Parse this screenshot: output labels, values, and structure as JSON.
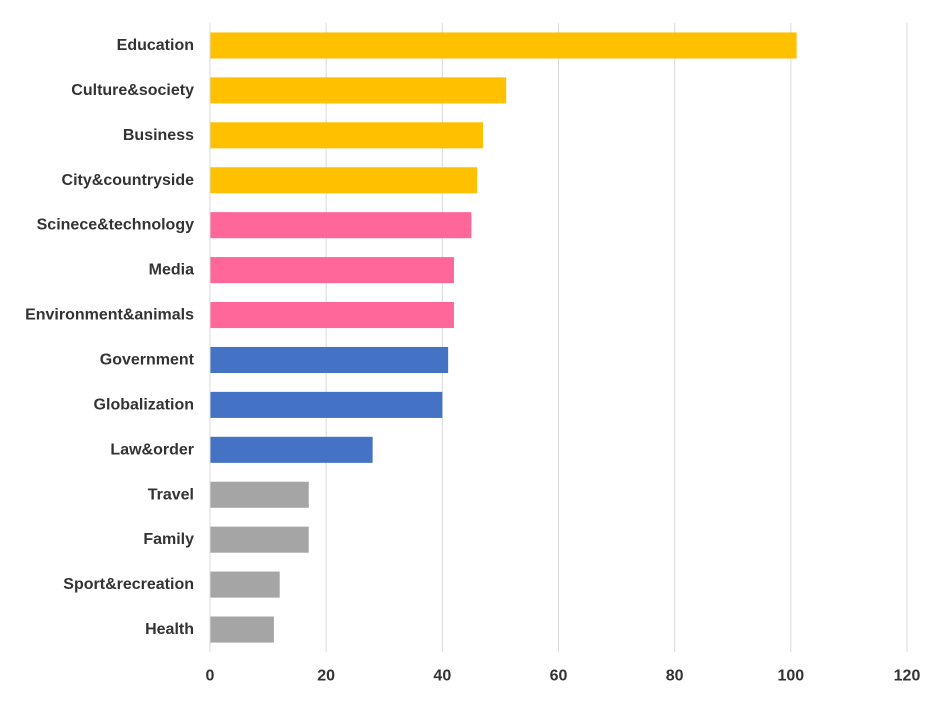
{
  "chart_data": {
    "type": "bar",
    "orientation": "horizontal",
    "title": "",
    "xlabel": "",
    "ylabel": "",
    "categories": [
      "Education",
      "Culture&society",
      "Business",
      "City&countryside",
      "Scinece&technology",
      "Media",
      "Environment&animals",
      "Government",
      "Globalization",
      "Law&order",
      "Travel",
      "Family",
      "Sport&recreation",
      "Health"
    ],
    "values": [
      101,
      51,
      47,
      46,
      45,
      42,
      42,
      41,
      40,
      28,
      17,
      17,
      12,
      11
    ],
    "bar_colors": [
      "#FFC000",
      "#FFC000",
      "#FFC000",
      "#FFC000",
      "#FF6699",
      "#FF6699",
      "#FF6699",
      "#4472C4",
      "#4472C4",
      "#4472C4",
      "#A5A5A5",
      "#A5A5A5",
      "#A5A5A5",
      "#A5A5A5"
    ],
    "xlim": [
      0,
      120
    ],
    "x_ticks": [
      0,
      20,
      40,
      60,
      80,
      100,
      120
    ],
    "grid": "vertical",
    "gridline_color": "#D9D9D9",
    "legend": "none"
  }
}
